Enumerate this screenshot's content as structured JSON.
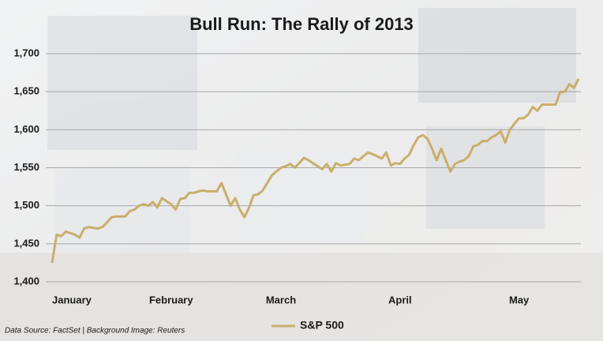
{
  "chart_data": {
    "type": "line",
    "title": "Bull Run: The Rally of 2013",
    "source": "Data Source: FactSet | Background Image: Reuters",
    "categories": [
      "January",
      null,
      null,
      null,
      null,
      null,
      null,
      null,
      null,
      null,
      null,
      null,
      null,
      null,
      null,
      null,
      null,
      null,
      null,
      null,
      null,
      null,
      null,
      null,
      null,
      null,
      "February",
      null,
      null,
      null,
      null,
      null,
      null,
      null,
      null,
      null,
      null,
      null,
      null,
      null,
      null,
      null,
      null,
      null,
      null,
      null,
      null,
      null,
      null,
      null,
      "March",
      null,
      null,
      null,
      null,
      null,
      null,
      null,
      null,
      null,
      null,
      null,
      null,
      null,
      null,
      null,
      null,
      null,
      null,
      null,
      null,
      null,
      null,
      null,
      null,
      null,
      "April",
      null,
      null,
      null,
      null,
      null,
      null,
      null,
      null,
      null,
      null,
      null,
      null,
      null,
      null,
      null,
      null,
      null,
      null,
      null,
      null,
      null,
      null,
      null,
      null,
      null,
      "May",
      null,
      null,
      null,
      null,
      null,
      null,
      null,
      null,
      null,
      null,
      null,
      null,
      null
    ],
    "series": [
      {
        "name": "S&P 500",
        "color": "#c9ae6c",
        "values": [
          1425,
          1462,
          1460,
          1466,
          1464,
          1462,
          1458,
          1470,
          1472,
          1471,
          1470,
          1472,
          1478,
          1485,
          1486,
          1486,
          1486,
          1493,
          1495,
          1500,
          1502,
          1500,
          1505,
          1498,
          1510,
          1506,
          1502,
          1495,
          1509,
          1510,
          1517,
          1517,
          1519,
          1520,
          1519,
          1519,
          1519,
          1530,
          1515,
          1500,
          1510,
          1495,
          1485,
          1497,
          1514,
          1515,
          1520,
          1530,
          1540,
          1545,
          1550,
          1552,
          1555,
          1550,
          1556,
          1563,
          1560,
          1556,
          1552,
          1548,
          1555,
          1545,
          1556,
          1553,
          1554,
          1555,
          1562,
          1560,
          1565,
          1570,
          1568,
          1565,
          1562,
          1570,
          1553,
          1556,
          1555,
          1562,
          1567,
          1580,
          1590,
          1593,
          1588,
          1575,
          1560,
          1575,
          1560,
          1545,
          1555,
          1558,
          1560,
          1565,
          1578,
          1580,
          1585,
          1585,
          1590,
          1593,
          1598,
          1583,
          1600,
          1608,
          1615,
          1615,
          1620,
          1630,
          1625,
          1633,
          1633,
          1633,
          1633,
          1650,
          1650,
          1660,
          1655,
          1667
        ]
      }
    ],
    "ylim": [
      1400,
      1700
    ],
    "yticks": [
      {
        "value": 1400,
        "label": "1,400"
      },
      {
        "value": 1450,
        "label": "1,450"
      },
      {
        "value": 1500,
        "label": "1,500"
      },
      {
        "value": 1550,
        "label": "1,550"
      },
      {
        "value": 1600,
        "label": "1,600"
      },
      {
        "value": 1650,
        "label": "1,650"
      },
      {
        "value": 1700,
        "label": "1,700"
      }
    ],
    "grid": true
  }
}
